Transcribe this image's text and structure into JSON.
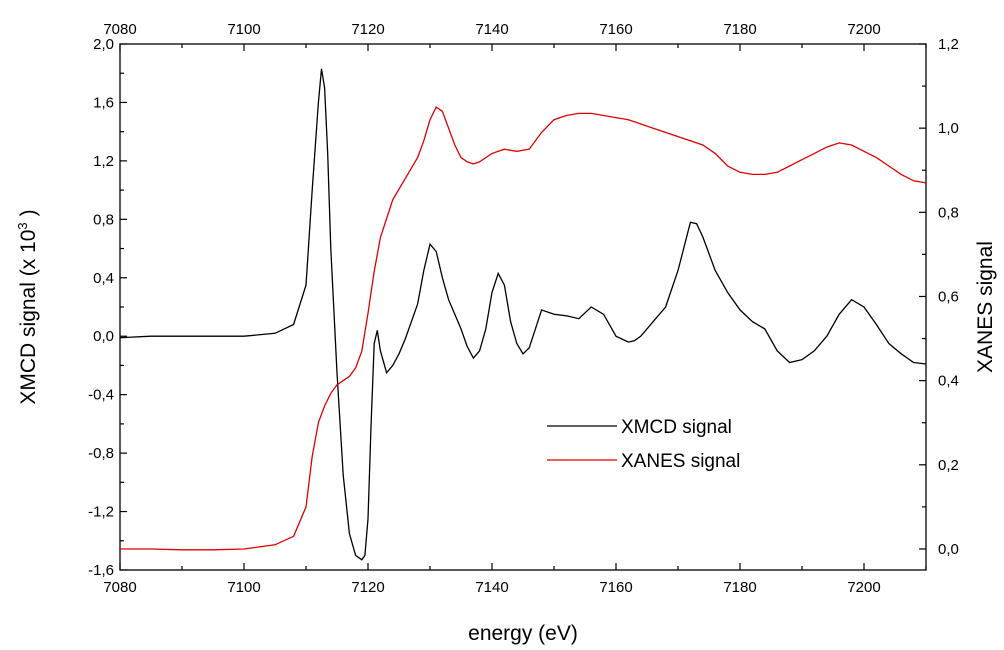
{
  "chart_data": {
    "type": "line",
    "xlabel": "energy (eV)",
    "ylabel_left": "XMCD signal (x 10",
    "ylabel_left_exp": "3",
    "ylabel_left_close": ")",
    "ylabel_right": "XANES signal",
    "xlim": [
      7080,
      7210
    ],
    "ylim_left": [
      -1.6,
      2.0
    ],
    "ylim_right": [
      -0.05,
      1.2
    ],
    "x_ticks": [
      "7080",
      "7100",
      "7120",
      "7140",
      "7160",
      "7180",
      "7200"
    ],
    "x_tick_values": [
      7080,
      7100,
      7120,
      7140,
      7160,
      7180,
      7200
    ],
    "y_left_ticks": [
      "-1,6",
      "-1,2",
      "-0,8",
      "-0,4",
      "0,0",
      "0,4",
      "0,8",
      "1,2",
      "1,6",
      "2,0"
    ],
    "y_left_tick_values": [
      -1.6,
      -1.2,
      -0.8,
      -0.4,
      0.0,
      0.4,
      0.8,
      1.2,
      1.6,
      2.0
    ],
    "y_right_ticks": [
      "0,0",
      "0,2",
      "0,4",
      "0,6",
      "0,8",
      "1,0",
      "1,2"
    ],
    "y_right_tick_values": [
      0.0,
      0.2,
      0.4,
      0.6,
      0.8,
      1.0,
      1.2
    ],
    "legend_position": "lower-right",
    "grid": false,
    "series": [
      {
        "name": "XMCD signal",
        "axis": "left",
        "color": "#000000",
        "x": [
          7080,
          7085,
          7090,
          7095,
          7100,
          7105,
          7108,
          7110,
          7111,
          7112,
          7112.5,
          7113,
          7113.5,
          7114,
          7115,
          7116,
          7117,
          7118,
          7119,
          7119.5,
          7120,
          7120.5,
          7121,
          7121.5,
          7122,
          7123,
          7124,
          7125,
          7126,
          7128,
          7129,
          7130,
          7131,
          7132,
          7133,
          7134,
          7135,
          7136,
          7137,
          7138,
          7139,
          7140,
          7141,
          7142,
          7143,
          7144,
          7145,
          7146,
          7147,
          7148,
          7150,
          7152,
          7154,
          7156,
          7158,
          7160,
          7162,
          7163,
          7164,
          7166,
          7168,
          7170,
          7172,
          7173,
          7174,
          7176,
          7178,
          7180,
          7182,
          7184,
          7186,
          7188,
          7190,
          7192,
          7194,
          7196,
          7198,
          7200,
          7202,
          7204,
          7206,
          7208,
          7210
        ],
        "y": [
          -0.01,
          0.0,
          0.0,
          0.0,
          0.0,
          0.02,
          0.08,
          0.35,
          1.0,
          1.6,
          1.83,
          1.7,
          1.25,
          0.6,
          -0.25,
          -0.95,
          -1.35,
          -1.5,
          -1.53,
          -1.5,
          -1.25,
          -0.6,
          -0.05,
          0.04,
          -0.1,
          -0.25,
          -0.2,
          -0.12,
          -0.02,
          0.22,
          0.45,
          0.63,
          0.58,
          0.4,
          0.25,
          0.15,
          0.05,
          -0.07,
          -0.15,
          -0.1,
          0.05,
          0.3,
          0.43,
          0.35,
          0.1,
          -0.05,
          -0.12,
          -0.08,
          0.05,
          0.18,
          0.15,
          0.14,
          0.12,
          0.2,
          0.15,
          0.0,
          -0.04,
          -0.03,
          0.0,
          0.1,
          0.2,
          0.45,
          0.78,
          0.77,
          0.68,
          0.45,
          0.3,
          0.18,
          0.1,
          0.05,
          -0.1,
          -0.18,
          -0.16,
          -0.1,
          0.0,
          0.15,
          0.25,
          0.2,
          0.08,
          -0.05,
          -0.12,
          -0.18,
          -0.19
        ]
      },
      {
        "name": "XANES signal",
        "axis": "right",
        "color": "#e00000",
        "x": [
          7080,
          7085,
          7090,
          7095,
          7100,
          7105,
          7108,
          7110,
          7111,
          7112,
          7113,
          7114,
          7115,
          7116,
          7117,
          7118,
          7119,
          7120,
          7121,
          7122,
          7124,
          7126,
          7128,
          7129,
          7130,
          7131,
          7132,
          7133,
          7134,
          7135,
          7136,
          7137,
          7138,
          7140,
          7142,
          7144,
          7146,
          7148,
          7150,
          7152,
          7154,
          7156,
          7158,
          7160,
          7162,
          7164,
          7166,
          7168,
          7170,
          7172,
          7174,
          7176,
          7178,
          7180,
          7182,
          7184,
          7186,
          7188,
          7190,
          7192,
          7194,
          7196,
          7198,
          7200,
          7202,
          7204,
          7206,
          7208,
          7210
        ],
        "y": [
          0.0,
          0.0,
          -0.002,
          -0.002,
          0.0,
          0.01,
          0.03,
          0.1,
          0.22,
          0.3,
          0.34,
          0.37,
          0.39,
          0.4,
          0.41,
          0.43,
          0.47,
          0.56,
          0.66,
          0.74,
          0.83,
          0.88,
          0.93,
          0.97,
          1.02,
          1.05,
          1.04,
          1.0,
          0.96,
          0.93,
          0.92,
          0.915,
          0.92,
          0.94,
          0.95,
          0.945,
          0.95,
          0.99,
          1.02,
          1.03,
          1.035,
          1.035,
          1.03,
          1.025,
          1.02,
          1.01,
          1.0,
          0.99,
          0.98,
          0.97,
          0.96,
          0.94,
          0.91,
          0.895,
          0.89,
          0.89,
          0.895,
          0.91,
          0.925,
          0.94,
          0.955,
          0.965,
          0.96,
          0.945,
          0.93,
          0.91,
          0.89,
          0.875,
          0.87
        ]
      }
    ]
  }
}
